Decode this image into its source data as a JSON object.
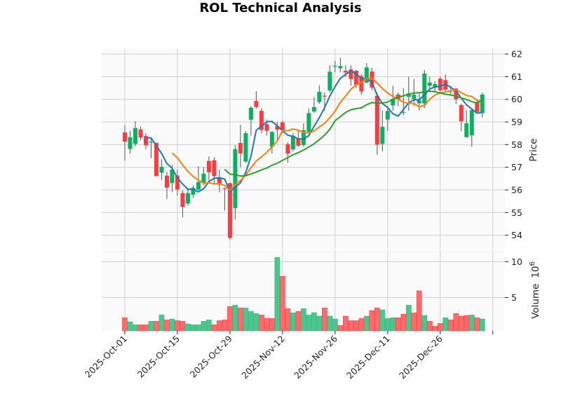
{
  "chart_data": {
    "type": "candlestick",
    "title": "ROL Technical Analysis",
    "price_panel": {
      "ylabel": "Price",
      "ylim": [
        53.4,
        62.25
      ],
      "yticks": [
        54,
        55,
        56,
        57,
        58,
        59,
        60,
        61,
        62
      ],
      "grid": true
    },
    "volume_panel": {
      "ylabel": "Volume",
      "scale_label": "10",
      "scale_exponent": "6",
      "ylim": [
        0.35,
        11.6
      ],
      "yticks": [
        5,
        10
      ],
      "grid": true
    },
    "x_ticks": [
      {
        "index": 0,
        "label": "2025-Oct-01"
      },
      {
        "index": 10,
        "label": "2025-Oct-15"
      },
      {
        "index": 20,
        "label": "2025-Oct-29"
      },
      {
        "index": 30,
        "label": "2025-Nov-12"
      },
      {
        "index": 40,
        "label": "2025-Nov-26"
      },
      {
        "index": 50,
        "label": "2025-Dec-11"
      },
      {
        "index": 60,
        "label": "2025-Dec-26"
      },
      {
        "index": 70,
        "label": ""
      }
    ],
    "xlim": [
      -4.4,
      72.3
    ],
    "ohlc_columns": [
      "open",
      "high",
      "low",
      "close"
    ],
    "ohlc": [
      [
        58.54,
        58.85,
        57.3,
        58.13
      ],
      [
        57.81,
        58.6,
        57.6,
        58.33
      ],
      [
        58.03,
        59.03,
        57.93,
        58.73
      ],
      [
        58.67,
        58.8,
        58.2,
        58.31
      ],
      [
        58.38,
        58.5,
        57.8,
        57.97
      ],
      [
        58.1,
        58.3,
        57.4,
        58.13
      ],
      [
        58.07,
        58.1,
        56.6,
        56.61
      ],
      [
        56.76,
        57.36,
        56.44,
        57.02
      ],
      [
        56.63,
        56.8,
        55.6,
        56.1
      ],
      [
        56.3,
        57.1,
        55.91,
        56.9
      ],
      [
        56.63,
        56.9,
        55.75,
        56.02
      ],
      [
        55.86,
        55.98,
        54.78,
        55.25
      ],
      [
        55.4,
        56.0,
        55.3,
        55.86
      ],
      [
        55.79,
        56.2,
        55.65,
        56.1
      ],
      [
        56.01,
        57.04,
        56.0,
        56.35
      ],
      [
        56.3,
        57.0,
        56.2,
        56.72
      ],
      [
        57.28,
        57.48,
        56.4,
        56.78
      ],
      [
        57.31,
        57.45,
        56.3,
        56.61
      ],
      [
        56.56,
        56.9,
        55.9,
        56.23
      ],
      [
        56.08,
        56.1,
        55.09,
        56.06
      ],
      [
        56.3,
        56.32,
        53.8,
        53.88
      ],
      [
        55.2,
        57.98,
        54.7,
        57.8
      ],
      [
        58.07,
        58.87,
        57.0,
        57.61
      ],
      [
        57.25,
        58.6,
        57.2,
        58.5
      ],
      [
        59.1,
        59.7,
        58.4,
        59.63
      ],
      [
        59.93,
        60.36,
        59.6,
        59.66
      ],
      [
        59.49,
        59.6,
        58.5,
        58.65
      ],
      [
        58.9,
        59.1,
        58.4,
        58.61
      ],
      [
        57.9,
        58.6,
        57.6,
        58.56
      ],
      [
        58.82,
        59.0,
        58.2,
        58.66
      ],
      [
        58.98,
        59.05,
        58.5,
        58.63
      ],
      [
        58.02,
        58.1,
        57.2,
        57.61
      ],
      [
        57.79,
        58.5,
        57.7,
        58.39
      ],
      [
        58.29,
        58.6,
        57.9,
        57.95
      ],
      [
        57.98,
        58.94,
        57.9,
        58.64
      ],
      [
        58.56,
        59.6,
        58.5,
        59.39
      ],
      [
        59.46,
        60.1,
        59.4,
        59.66
      ],
      [
        59.88,
        60.62,
        59.8,
        60.33
      ],
      [
        60.16,
        60.3,
        59.5,
        60.14
      ],
      [
        60.39,
        61.5,
        60.3,
        61.22
      ],
      [
        61.47,
        61.7,
        61.2,
        61.48
      ],
      [
        61.37,
        61.84,
        61.2,
        61.47
      ],
      [
        61.26,
        61.5,
        61.0,
        61.19
      ],
      [
        61.32,
        61.5,
        60.6,
        60.9
      ],
      [
        61.26,
        61.3,
        60.5,
        60.64
      ],
      [
        61.03,
        61.1,
        60.2,
        60.35
      ],
      [
        60.74,
        61.6,
        60.7,
        61.41
      ],
      [
        61.23,
        61.4,
        60.4,
        60.52
      ],
      [
        60.16,
        60.3,
        57.56,
        58.0
      ],
      [
        58.03,
        59.5,
        57.7,
        58.79
      ],
      [
        59.11,
        59.7,
        58.6,
        59.49
      ],
      [
        59.73,
        60.6,
        59.5,
        60.02
      ],
      [
        60.21,
        60.3,
        59.7,
        60.0
      ],
      [
        59.42,
        60.5,
        59.3,
        59.44
      ],
      [
        60.11,
        61.0,
        59.5,
        60.26
      ],
      [
        60.02,
        60.9,
        59.7,
        60.21
      ],
      [
        59.82,
        60.3,
        59.5,
        59.95
      ],
      [
        59.82,
        61.3,
        59.6,
        61.14
      ],
      [
        60.6,
        61.0,
        60.4,
        60.74
      ],
      [
        60.54,
        60.8,
        60.3,
        60.67
      ],
      [
        60.91,
        61.0,
        60.3,
        60.4
      ],
      [
        60.85,
        61.1,
        60.3,
        60.42
      ],
      [
        60.4,
        60.6,
        60.2,
        60.38
      ],
      [
        60.47,
        60.5,
        59.8,
        60.0
      ],
      [
        59.75,
        59.8,
        58.6,
        59.03
      ],
      [
        58.33,
        59.5,
        58.3,
        58.94
      ],
      [
        58.41,
        59.6,
        57.9,
        59.52
      ],
      [
        59.87,
        60.0,
        59.4,
        59.44
      ],
      [
        59.39,
        60.3,
        59.2,
        60.21
      ]
    ],
    "volume_millions": [
      2.16,
      1.6,
      1.18,
      1.18,
      1.18,
      1.67,
      1.67,
      2.55,
      1.86,
      1.99,
      1.76,
      1.67,
      1.31,
      1.18,
      1.18,
      1.67,
      1.86,
      1.18,
      1.76,
      1.86,
      3.73,
      3.92,
      3.53,
      3.53,
      3.04,
      2.75,
      2.55,
      2.06,
      2.06,
      10.59,
      7.94,
      3.43,
      2.84,
      3.04,
      3.43,
      2.55,
      2.88,
      2.39,
      3.53,
      2.39,
      1.99,
      1.08,
      2.39,
      1.76,
      1.76,
      2.06,
      2.39,
      3.17,
      3.53,
      3.27,
      2.06,
      2.16,
      2.16,
      2.65,
      3.92,
      2.84,
      5.92,
      2.48,
      1.67,
      0.98,
      1.37,
      2.16,
      1.86,
      2.75,
      2.39,
      2.48,
      2.55,
      2.16,
      2.0
    ],
    "moving_averages": [
      {
        "period": 5,
        "color": "#1f77b4"
      },
      {
        "period": 10,
        "color": "#ff7f0e"
      },
      {
        "period": 20,
        "color": "#2ca02c"
      }
    ],
    "colors": {
      "up": "#0db060",
      "down": "#ff3b3f",
      "volume_up": "#4cc68e",
      "volume_down": "#ff6b6b",
      "panel_bg": "#fafafa",
      "grid": "#d0d0d0"
    }
  }
}
